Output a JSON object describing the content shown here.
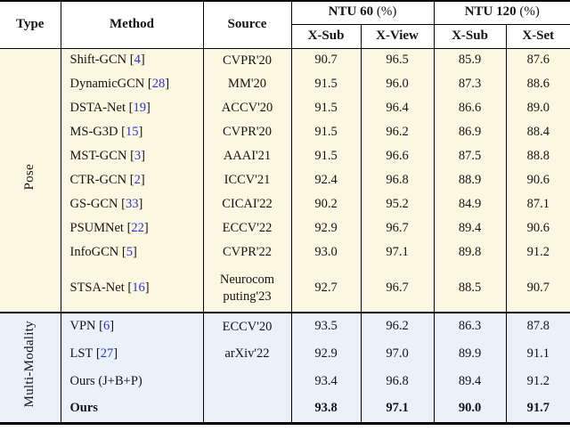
{
  "colors": {
    "pose_section_bg": "#fbf7e1",
    "multi_section_bg": "#eaf1fa",
    "citation_blue": "#2633d6",
    "border_black": "#000000"
  },
  "header": {
    "type": "Type",
    "method": "Method",
    "source": "Source",
    "ntu60": {
      "name": "NTU 60",
      "suffix": "(%)"
    },
    "ntu120": {
      "name": "NTU 120",
      "suffix": "(%)"
    },
    "subcols": [
      "X-Sub",
      "X-View",
      "X-Sub",
      "X-Set"
    ]
  },
  "sections": [
    {
      "id": "pose",
      "type_label": "Pose",
      "rows": [
        {
          "method": "Shift-GCN",
          "cite": "4",
          "source": "CVPR'20",
          "values": [
            "90.7",
            "96.5",
            "85.9",
            "87.6"
          ]
        },
        {
          "method": "DynamicGCN",
          "cite": "28",
          "source": "MM'20",
          "values": [
            "91.5",
            "96.0",
            "87.3",
            "88.6"
          ]
        },
        {
          "method": "DSTA-Net",
          "cite": "19",
          "source": "ACCV'20",
          "values": [
            "91.5",
            "96.4",
            "86.6",
            "89.0"
          ]
        },
        {
          "method": "MS-G3D",
          "cite": "15",
          "source": "CVPR'20",
          "values": [
            "91.5",
            "96.2",
            "86.9",
            "88.4"
          ]
        },
        {
          "method": "MST-GCN",
          "cite": "3",
          "source": "AAAI'21",
          "values": [
            "91.5",
            "96.6",
            "87.5",
            "88.8"
          ]
        },
        {
          "method": "CTR-GCN",
          "cite": "2",
          "source": "ICCV'21",
          "values": [
            "92.4",
            "96.8",
            "88.9",
            "90.6"
          ]
        },
        {
          "method": "GS-GCN",
          "cite": "33",
          "source": "CICAI'22",
          "values": [
            "90.2",
            "95.2",
            "84.9",
            "87.1"
          ]
        },
        {
          "method": "PSUMNet",
          "cite": "22",
          "source": "ECCV'22",
          "values": [
            "92.9",
            "96.7",
            "89.4",
            "90.6"
          ]
        },
        {
          "method": "InfoGCN",
          "cite": "5",
          "source": "CVPR'22",
          "values": [
            "93.0",
            "97.1",
            "89.8",
            "91.2"
          ]
        },
        {
          "method": "STSA-Net",
          "cite": "16",
          "source": "Neurocom\nputing'23",
          "tall": true,
          "values": [
            "92.7",
            "96.7",
            "88.5",
            "90.7"
          ]
        }
      ]
    },
    {
      "id": "multi-modality",
      "type_label": "Multi-Modality",
      "rows": [
        {
          "method": "VPN",
          "cite": "6",
          "source": "ECCV'20",
          "values": [
            "93.5",
            "96.2",
            "86.3",
            "87.8"
          ]
        },
        {
          "method": "LST",
          "cite": "27",
          "source": "arXiv'22",
          "values": [
            "92.9",
            "97.0",
            "89.9",
            "91.1"
          ]
        },
        {
          "method": "Ours (J+B+P)",
          "cite": "",
          "source": "",
          "values": [
            "93.4",
            "96.8",
            "89.4",
            "91.2"
          ]
        },
        {
          "method": "Ours",
          "cite": "",
          "source": "",
          "bold": true,
          "values": [
            "93.8",
            "97.1",
            "90.0",
            "91.7"
          ]
        }
      ]
    }
  ]
}
